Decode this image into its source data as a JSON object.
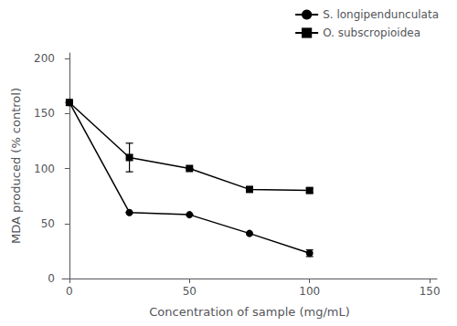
{
  "chart_data": {
    "type": "line",
    "xlabel": "Concentration of sample (mg/mL)",
    "ylabel": "MDA produced (% control)",
    "series": [
      {
        "name": "S. longipendunculata",
        "color": "#000000",
        "marker": "circle",
        "x": [
          0,
          25,
          50,
          75,
          100
        ],
        "values": [
          160,
          60,
          58,
          41,
          23
        ],
        "yerr": [
          0,
          0,
          0,
          0,
          3
        ]
      },
      {
        "name": "O. subscropioidea",
        "color": "#000000",
        "marker": "square",
        "x": [
          0,
          25,
          50,
          75,
          100
        ],
        "values": [
          160,
          110,
          100,
          81,
          80
        ],
        "yerr": [
          0,
          13,
          0,
          0,
          2
        ]
      }
    ],
    "xlim": [
      -3,
      153
    ],
    "ylim": [
      0,
      205
    ],
    "xticks": [
      0,
      50,
      100,
      150
    ],
    "yticks": [
      0,
      50,
      100,
      150,
      200
    ],
    "grid": false,
    "legend": "upper right"
  }
}
